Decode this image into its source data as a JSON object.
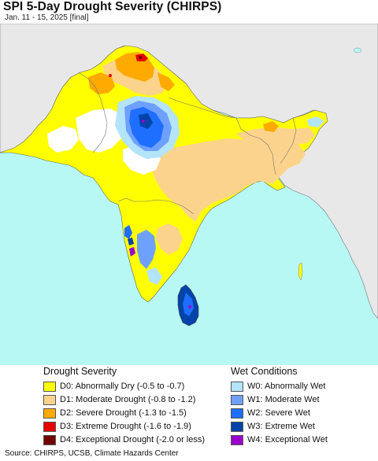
{
  "title": "SPI 5-Day Drought Severity (CHIRPS)",
  "subtitle": "Jan. 11 - 15, 2025 [final]",
  "colors": {
    "ocean": "#b7f7f4",
    "land": "#e8e8e8",
    "neutral": "#ffffff",
    "d0": "#ffff00",
    "d1": "#fcd38c",
    "d2": "#ffaa00",
    "d3": "#e60000",
    "d4": "#730000",
    "w0": "#b4e4fa",
    "w1": "#6ea0ff",
    "w2": "#1e6eff",
    "w3": "#0044aa",
    "w4": "#9900cc",
    "boundary": "#777777"
  },
  "legend": {
    "drought_title": "Drought Severity",
    "wet_title": "Wet Conditions",
    "drought_items": [
      {
        "label": "D0: Abnormally Dry (-0.5 to -0.7)",
        "color": "#ffff00"
      },
      {
        "label": "D1: Moderate Drought (-0.8 to -1.2)",
        "color": "#fcd38c"
      },
      {
        "label": "D2: Severe Drought (-1.3 to -1.5)",
        "color": "#ffaa00"
      },
      {
        "label": "D3: Extreme Drought (-1.6 to -1.9)",
        "color": "#e60000"
      },
      {
        "label": "D4: Exceptional Drought (-2.0 or less)",
        "color": "#730000"
      }
    ],
    "wet_items": [
      {
        "label": "W0: Abnormally Wet",
        "color": "#b4e4fa"
      },
      {
        "label": "W1: Moderate Wet",
        "color": "#6ea0ff"
      },
      {
        "label": "W2: Severe Wet",
        "color": "#1e6eff"
      },
      {
        "label": "W3: Extreme Wet",
        "color": "#0044aa"
      },
      {
        "label": "W4: Exceptional Wet",
        "color": "#9900cc"
      }
    ]
  },
  "source": "Source: CHIRPS, UCSB, Climate Hazards Center"
}
